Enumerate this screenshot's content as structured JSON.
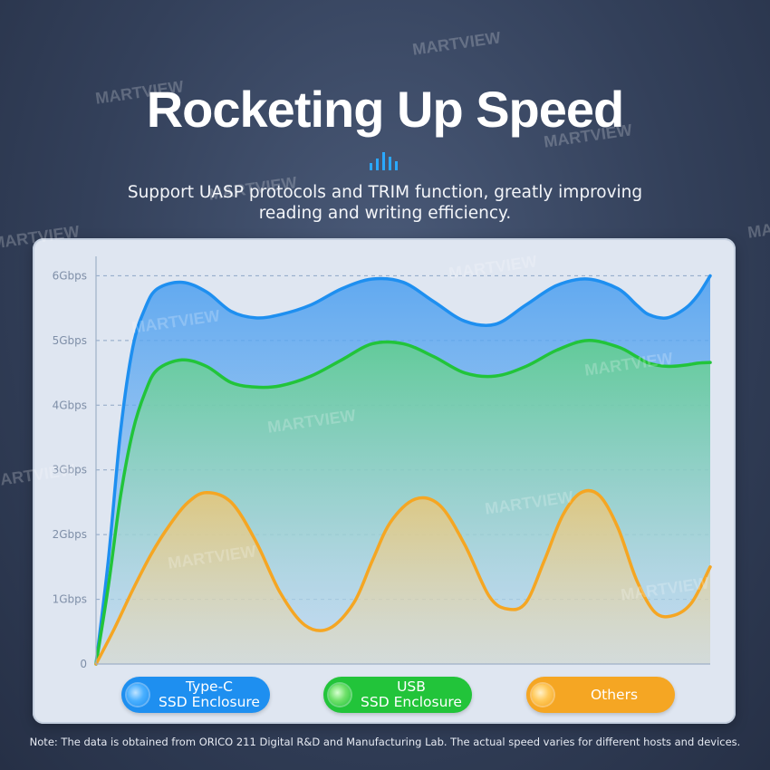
{
  "header": {
    "title": "Rocketing Up Speed",
    "subtitle_line1": "Support UASP protocols and TRIM function, greatly improving",
    "subtitle_line2": "reading and writing efficiency."
  },
  "icons": {
    "title_accent": "signal-bars-icon"
  },
  "colors": {
    "background": "#33405a",
    "panel": "#dfe6f1",
    "type_c": "#1e8ff0",
    "usb": "#22c43a",
    "others": "#f5a623"
  },
  "chart_data": {
    "type": "area",
    "y_ticks": [
      "0",
      "1Gbps",
      "2Gbps",
      "3Gbps",
      "4Gbps",
      "5Gbps",
      "6Gbps"
    ],
    "ylim": [
      0,
      6.3
    ],
    "xlim": [
      0,
      100
    ],
    "grid": true,
    "legend_placement": "bottom",
    "series": [
      {
        "name_line1": "Type-C",
        "name_line2": "SSD Enclosure",
        "color": "#1e8ff0",
        "x": [
          0,
          2,
          4,
          6,
          8,
          10,
          14,
          18,
          22,
          26,
          30,
          35,
          40,
          45,
          50,
          55,
          60,
          65,
          70,
          75,
          80,
          85,
          88,
          90,
          93,
          96,
          98,
          100
        ],
        "y": [
          0,
          1.6,
          3.6,
          4.9,
          5.5,
          5.8,
          5.9,
          5.75,
          5.45,
          5.35,
          5.4,
          5.55,
          5.8,
          5.95,
          5.9,
          5.6,
          5.3,
          5.25,
          5.55,
          5.85,
          5.95,
          5.8,
          5.55,
          5.4,
          5.35,
          5.5,
          5.7,
          6.0
        ]
      },
      {
        "name_line1": "USB",
        "name_line2": "SSD Enclosure",
        "color": "#22c43a",
        "x": [
          0,
          2,
          4,
          6,
          8,
          10,
          14,
          18,
          22,
          26,
          30,
          35,
          40,
          45,
          50,
          55,
          60,
          65,
          70,
          75,
          80,
          85,
          88,
          90,
          93,
          96,
          98,
          100
        ],
        "y": [
          0,
          1.2,
          2.6,
          3.6,
          4.2,
          4.55,
          4.7,
          4.6,
          4.35,
          4.28,
          4.3,
          4.45,
          4.7,
          4.95,
          4.95,
          4.75,
          4.5,
          4.45,
          4.6,
          4.85,
          5.0,
          4.9,
          4.75,
          4.65,
          4.6,
          4.62,
          4.65,
          4.66
        ]
      },
      {
        "name_line1": "Others",
        "name_line2": "",
        "color": "#f5a623",
        "x": [
          0,
          3,
          6,
          9,
          12,
          15,
          18,
          22,
          26,
          30,
          34,
          38,
          42,
          45,
          48,
          52,
          56,
          60,
          64,
          67,
          70,
          73,
          76,
          79,
          82,
          85,
          88,
          91,
          94,
          97,
          100
        ],
        "y": [
          0,
          0.55,
          1.15,
          1.7,
          2.15,
          2.5,
          2.65,
          2.5,
          1.9,
          1.1,
          0.6,
          0.55,
          0.95,
          1.6,
          2.2,
          2.55,
          2.45,
          1.85,
          1.05,
          0.85,
          0.95,
          1.6,
          2.3,
          2.65,
          2.6,
          2.1,
          1.3,
          0.8,
          0.75,
          0.95,
          1.5
        ]
      }
    ]
  },
  "legend": {
    "type_c": {
      "line1": "Type-C",
      "line2": "SSD Enclosure"
    },
    "usb": {
      "line1": "USB",
      "line2": "SSD Enclosure"
    },
    "others": {
      "line1": "Others"
    }
  },
  "watermarks": [
    "MARTVIEW",
    "MARTVIEW",
    "MARTVIEW",
    "MARTVIEW",
    "MARTVIEW",
    "MARTVIEW",
    "MARTVIEW",
    "MARTVIEW",
    "MARTVIEW",
    "MARTVIEW",
    "MARTVIEW",
    "MARTVIEW",
    "MARTVIEW",
    "MARTVIEW"
  ],
  "footer": {
    "note": "Note: The data is obtained from ORICO 211 Digital R&D and Manufacturing Lab. The actual speed varies for different hosts and devices."
  }
}
